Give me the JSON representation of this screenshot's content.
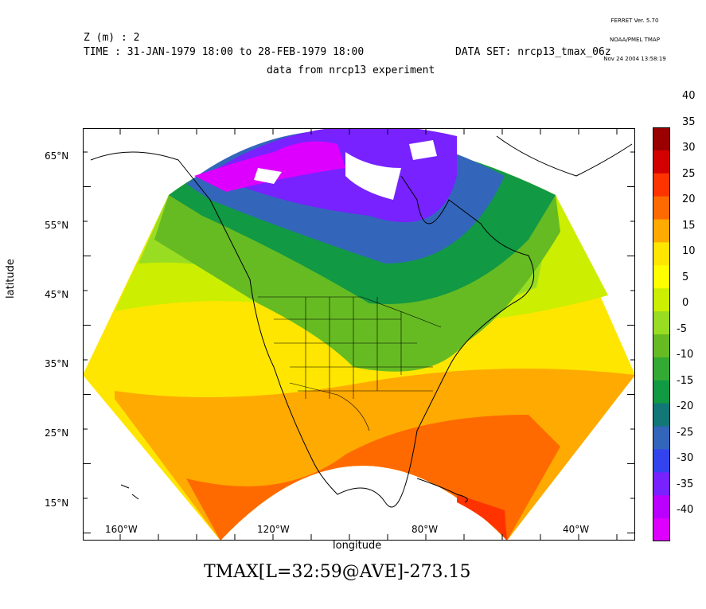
{
  "ferret_stamp": [
    "FERRET Ver. 5.70",
    "NOAA/PMEL TMAP",
    "Nov 24 2004 13:58:19"
  ],
  "header": {
    "z_line": "Z (m) : 2",
    "time_line": "TIME : 31-JAN-1979 18:00 to 28-FEB-1979 18:00",
    "dataset_line": "DATA SET: nrcp13_tmax_06z",
    "subtitle": "data from nrcp13 experiment"
  },
  "axes": {
    "xlabel": "longitude",
    "ylabel": "latitude",
    "lat_ticks": [
      "65°N",
      "55°N",
      "45°N",
      "35°N",
      "25°N",
      "15°N"
    ],
    "lon_ticks": [
      "160°W",
      "120°W",
      "80°W",
      "40°W"
    ]
  },
  "colorbar": {
    "labels": [
      "40",
      "35",
      "30",
      "25",
      "20",
      "15",
      "10",
      "5",
      "0",
      "-5",
      "-10",
      "-15",
      "-20",
      "-25",
      "-30",
      "-35",
      "-40"
    ],
    "colors": [
      "#9b0000",
      "#d40000",
      "#ff3300",
      "#ff6a00",
      "#ffaa00",
      "#ffe600",
      "#ffff00",
      "#ccee00",
      "#99dd22",
      "#66bb22",
      "#33aa33",
      "#119944",
      "#117777",
      "#3366bb",
      "#3344ee",
      "#7722ff",
      "#bb00ff",
      "#dd00ff"
    ]
  },
  "expression": "TMAX[L=32:59@AVE]-273.15",
  "map_layers": [
    {
      "color_index": 8,
      "tip": 10
    },
    {
      "color_index": 7,
      "tip": 8
    },
    {
      "color_index": 6,
      "tip": 6
    },
    {
      "color_index": 5,
      "tip": 5
    }
  ]
}
